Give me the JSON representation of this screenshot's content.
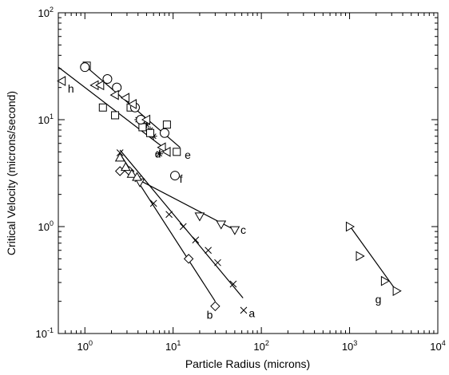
{
  "chart_data": {
    "type": "scatter",
    "title": "",
    "xlabel": "Particle Radius (microns)",
    "ylabel": "Critical Velocity (microns/second)",
    "xscale": "log",
    "yscale": "log",
    "xlim": [
      0.5,
      10000
    ],
    "ylim": [
      0.1,
      100
    ],
    "x_ticks": [
      {
        "base": "10",
        "exp": "0"
      },
      {
        "base": "10",
        "exp": "1"
      },
      {
        "base": "10",
        "exp": "2"
      },
      {
        "base": "10",
        "exp": "3"
      },
      {
        "base": "10",
        "exp": "4"
      }
    ],
    "y_ticks": [
      {
        "base": "10",
        "exp": "-1"
      },
      {
        "base": "10",
        "exp": "0"
      },
      {
        "base": "10",
        "exp": "1"
      },
      {
        "base": "10",
        "exp": "2"
      }
    ],
    "grid": false,
    "series": [
      {
        "label": "a",
        "marker": "x",
        "x": [
          2.5,
          4.0,
          6.0,
          9.0,
          13,
          18,
          25,
          32,
          48,
          63
        ],
        "y": [
          4.9,
          2.8,
          1.65,
          1.3,
          1.0,
          0.75,
          0.6,
          0.46,
          0.29,
          0.165
        ],
        "fit": [
          [
            2.5,
            5.2
          ],
          [
            62,
            0.215
          ]
        ],
        "label_at": [
          72,
          0.155
        ]
      },
      {
        "label": "b",
        "marker": "diamond",
        "x": [
          2.5,
          3.2,
          15,
          30
        ],
        "y": [
          3.3,
          3.3,
          0.5,
          0.18
        ],
        "fit": [
          [
            2.5,
            4.8
          ],
          [
            30,
            0.2
          ]
        ],
        "label_at": [
          24,
          0.15
        ]
      },
      {
        "label": "c",
        "marker": "triangle-down",
        "x": [
          4.2,
          20,
          35,
          50
        ],
        "y": [
          2.6,
          1.25,
          1.05,
          0.93
        ],
        "fit": [
          [
            4.2,
            2.7
          ],
          [
            50,
            0.93
          ]
        ],
        "label_at": [
          58,
          0.93
        ]
      },
      {
        "label": "d",
        "marker": "asterisk",
        "x": [
          4.0,
          5.0,
          5.5,
          6.0,
          7.0
        ],
        "y": [
          10.0,
          9.0,
          8.0,
          7.0,
          4.8
        ],
        "label_at": [
          6.2,
          4.8
        ]
      },
      {
        "label": "e",
        "marker": "square",
        "x": [
          1.05,
          1.6,
          2.2,
          3.3,
          4.5,
          5.5,
          8.5,
          11
        ],
        "y": [
          32,
          13,
          11,
          13,
          8.5,
          7.5,
          9.0,
          5.0
        ],
        "fit": [
          [
            1.0,
            32
          ],
          [
            12,
            5.5
          ]
        ],
        "label_at": [
          13.5,
          4.7
        ]
      },
      {
        "label": "f",
        "marker": "circle",
        "x": [
          1.0,
          1.8,
          2.3,
          3.7,
          4.3,
          8.0,
          10.5
        ],
        "y": [
          31,
          24,
          20,
          13,
          10,
          7.5,
          3.0
        ],
        "label_at": [
          11.8,
          2.8
        ]
      },
      {
        "label": "g",
        "marker": "triangle-right",
        "x": [
          1000,
          1300,
          2500,
          3400
        ],
        "y": [
          1.0,
          0.53,
          0.31,
          0.25
        ],
        "fit": [
          [
            1000,
            1.02
          ],
          [
            3400,
            0.25
          ]
        ],
        "label_at": [
          1950,
          0.21
        ]
      },
      {
        "label": "h",
        "marker": "triangle-left",
        "x": [
          0.55,
          1.3,
          1.5,
          2.2,
          2.9,
          3.5,
          5.0,
          7.5,
          8.5
        ],
        "y": [
          23,
          21,
          21,
          17,
          16,
          14,
          10,
          5.5,
          5.0
        ],
        "fit": [
          [
            0.5,
            31
          ],
          [
            9,
            5.0
          ]
        ],
        "label_at": [
          0.64,
          19.5
        ]
      },
      {
        "label": "",
        "marker": "triangle-up",
        "x": [
          2.5,
          2.9,
          3.4,
          3.9
        ],
        "y": [
          4.4,
          3.6,
          3.1,
          2.9
        ]
      }
    ]
  }
}
